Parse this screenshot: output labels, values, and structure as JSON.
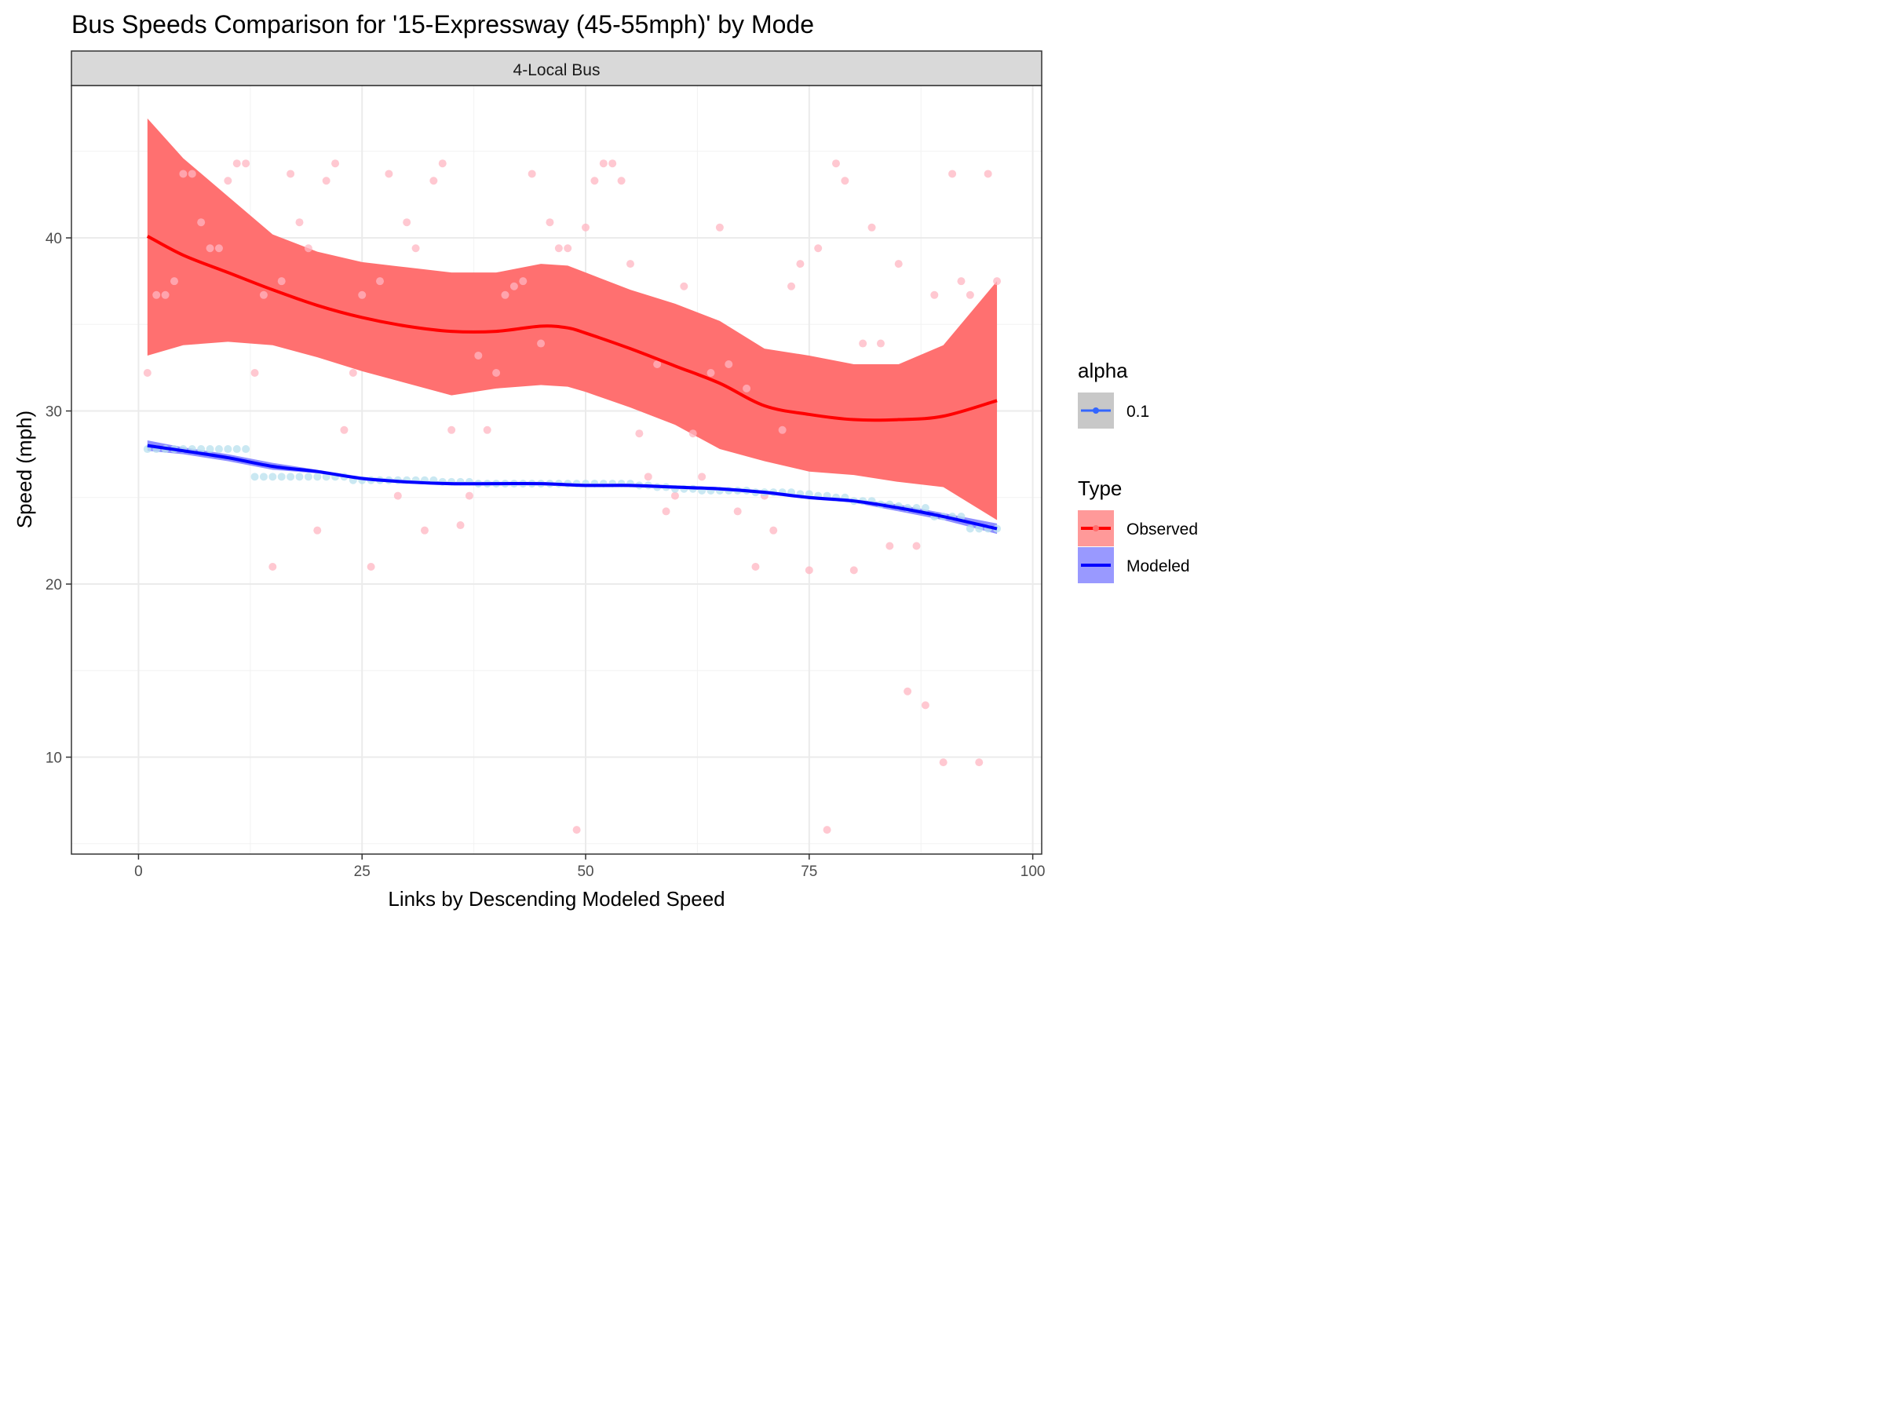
{
  "chart_data": {
    "type": "scatter",
    "title": "Bus Speeds Comparison for '15-Expressway (45-55mph)' by Mode",
    "facet_label": "4-Local Bus",
    "xlabel": "Links by Descending Modeled Speed",
    "ylabel": "Speed (mph)",
    "xlim": [
      -7.5,
      101
    ],
    "ylim": [
      4.4,
      48.8
    ],
    "x_ticks": [
      0,
      25,
      50,
      75,
      100
    ],
    "x_tick_labels": [
      "0",
      "25",
      "50",
      "75",
      "100"
    ],
    "y_ticks": [
      10,
      20,
      30,
      40
    ],
    "y_tick_labels": [
      "10",
      "20",
      "30",
      "40"
    ],
    "grid": true,
    "legend_position": "right",
    "legends": [
      {
        "title": "alpha",
        "items": [
          {
            "label": "0.1",
            "color": "#3366ff"
          }
        ]
      },
      {
        "title": "Type",
        "items": [
          {
            "label": "Observed",
            "color": "#ff0000",
            "fill": "#ff9999"
          },
          {
            "label": "Modeled",
            "color": "#0000ff",
            "fill": "#9999ff"
          }
        ]
      }
    ],
    "series": [
      {
        "name": "Observed",
        "point_color": "#ffb6c1",
        "line_color": "#ff0000",
        "band_color": "#ff7070",
        "points": [
          [
            1,
            32.2
          ],
          [
            2,
            36.7
          ],
          [
            3,
            36.7
          ],
          [
            4,
            37.5
          ],
          [
            5,
            43.7
          ],
          [
            6,
            43.7
          ],
          [
            7,
            40.9
          ],
          [
            8,
            39.4
          ],
          [
            9,
            39.4
          ],
          [
            10,
            43.3
          ],
          [
            11,
            44.3
          ],
          [
            12,
            44.3
          ],
          [
            13,
            32.2
          ],
          [
            14,
            36.7
          ],
          [
            15,
            21.0
          ],
          [
            16,
            37.5
          ],
          [
            17,
            43.7
          ],
          [
            18,
            40.9
          ],
          [
            19,
            39.4
          ],
          [
            20,
            23.1
          ],
          [
            21,
            43.3
          ],
          [
            22,
            44.3
          ],
          [
            23,
            28.9
          ],
          [
            24,
            32.2
          ],
          [
            25,
            36.7
          ],
          [
            26,
            21.0
          ],
          [
            27,
            37.5
          ],
          [
            28,
            43.7
          ],
          [
            29,
            25.1
          ],
          [
            30,
            40.9
          ],
          [
            31,
            39.4
          ],
          [
            32,
            23.1
          ],
          [
            33,
            43.3
          ],
          [
            34,
            44.3
          ],
          [
            35,
            28.9
          ],
          [
            36,
            23.4
          ],
          [
            37,
            25.1
          ],
          [
            38,
            33.2
          ],
          [
            39,
            28.9
          ],
          [
            40,
            32.2
          ],
          [
            41,
            36.7
          ],
          [
            42,
            37.2
          ],
          [
            43,
            37.5
          ],
          [
            44,
            43.7
          ],
          [
            45,
            33.9
          ],
          [
            46,
            40.9
          ],
          [
            47,
            39.4
          ],
          [
            48,
            39.4
          ],
          [
            49,
            5.8
          ],
          [
            50,
            40.6
          ],
          [
            51,
            43.3
          ],
          [
            52,
            44.3
          ],
          [
            53,
            44.3
          ],
          [
            54,
            43.3
          ],
          [
            55,
            38.5
          ],
          [
            56,
            28.7
          ],
          [
            57,
            26.2
          ],
          [
            58,
            32.7
          ],
          [
            59,
            24.2
          ],
          [
            60,
            25.1
          ],
          [
            61,
            37.2
          ],
          [
            62,
            28.7
          ],
          [
            63,
            26.2
          ],
          [
            64,
            32.2
          ],
          [
            65,
            40.6
          ],
          [
            66,
            32.7
          ],
          [
            67,
            24.2
          ],
          [
            68,
            31.3
          ],
          [
            69,
            21.0
          ],
          [
            70,
            25.1
          ],
          [
            71,
            23.1
          ],
          [
            72,
            28.9
          ],
          [
            73,
            37.2
          ],
          [
            74,
            38.5
          ],
          [
            75,
            20.8
          ],
          [
            76,
            39.4
          ],
          [
            77,
            5.8
          ],
          [
            78,
            44.3
          ],
          [
            79,
            43.3
          ],
          [
            80,
            20.8
          ],
          [
            81,
            33.9
          ],
          [
            82,
            40.6
          ],
          [
            83,
            33.9
          ],
          [
            84,
            22.2
          ],
          [
            85,
            38.5
          ],
          [
            86,
            13.8
          ],
          [
            87,
            22.2
          ],
          [
            88,
            13.0
          ],
          [
            89,
            36.7
          ],
          [
            90,
            9.7
          ],
          [
            91,
            43.7
          ],
          [
            92,
            37.5
          ],
          [
            93,
            36.7
          ],
          [
            94,
            9.7
          ],
          [
            95,
            43.7
          ],
          [
            96,
            37.5
          ]
        ],
        "smooth": [
          [
            1,
            40.1
          ],
          [
            5,
            39.0
          ],
          [
            10,
            38.0
          ],
          [
            15,
            37.0
          ],
          [
            20,
            36.1
          ],
          [
            25,
            35.4
          ],
          [
            30,
            34.9
          ],
          [
            35,
            34.6
          ],
          [
            40,
            34.6
          ],
          [
            45,
            34.9
          ],
          [
            48,
            34.8
          ],
          [
            50,
            34.5
          ],
          [
            55,
            33.6
          ],
          [
            60,
            32.6
          ],
          [
            65,
            31.6
          ],
          [
            70,
            30.3
          ],
          [
            75,
            29.8
          ],
          [
            80,
            29.5
          ],
          [
            85,
            29.5
          ],
          [
            90,
            29.7
          ],
          [
            96,
            30.6
          ]
        ],
        "band_upper": [
          [
            1,
            46.9
          ],
          [
            5,
            44.6
          ],
          [
            10,
            42.4
          ],
          [
            15,
            40.2
          ],
          [
            20,
            39.2
          ],
          [
            25,
            38.6
          ],
          [
            30,
            38.3
          ],
          [
            35,
            38.0
          ],
          [
            40,
            38.0
          ],
          [
            45,
            38.5
          ],
          [
            48,
            38.4
          ],
          [
            50,
            38.0
          ],
          [
            55,
            37.0
          ],
          [
            60,
            36.2
          ],
          [
            65,
            35.2
          ],
          [
            70,
            33.6
          ],
          [
            75,
            33.2
          ],
          [
            80,
            32.7
          ],
          [
            85,
            32.7
          ],
          [
            90,
            33.8
          ],
          [
            96,
            37.5
          ]
        ],
        "band_lower": [
          [
            1,
            33.2
          ],
          [
            5,
            33.8
          ],
          [
            10,
            34.0
          ],
          [
            15,
            33.8
          ],
          [
            20,
            33.1
          ],
          [
            25,
            32.3
          ],
          [
            30,
            31.6
          ],
          [
            35,
            30.9
          ],
          [
            40,
            31.3
          ],
          [
            45,
            31.5
          ],
          [
            48,
            31.4
          ],
          [
            50,
            31.1
          ],
          [
            55,
            30.2
          ],
          [
            60,
            29.2
          ],
          [
            65,
            27.8
          ],
          [
            70,
            27.1
          ],
          [
            75,
            26.5
          ],
          [
            80,
            26.3
          ],
          [
            85,
            25.9
          ],
          [
            90,
            25.6
          ],
          [
            96,
            23.7
          ]
        ]
      },
      {
        "name": "Modeled",
        "point_color": "#b8e0ee",
        "line_color": "#0000ff",
        "band_color": "#7b7bff",
        "points": [
          [
            1,
            27.8
          ],
          [
            2,
            27.8
          ],
          [
            3,
            27.8
          ],
          [
            4,
            27.8
          ],
          [
            5,
            27.8
          ],
          [
            6,
            27.8
          ],
          [
            7,
            27.8
          ],
          [
            8,
            27.8
          ],
          [
            9,
            27.8
          ],
          [
            10,
            27.8
          ],
          [
            11,
            27.8
          ],
          [
            12,
            27.8
          ],
          [
            13,
            26.2
          ],
          [
            14,
            26.2
          ],
          [
            15,
            26.2
          ],
          [
            16,
            26.2
          ],
          [
            17,
            26.2
          ],
          [
            18,
            26.2
          ],
          [
            19,
            26.2
          ],
          [
            20,
            26.2
          ],
          [
            21,
            26.2
          ],
          [
            22,
            26.2
          ],
          [
            23,
            26.2
          ],
          [
            24,
            26.0
          ],
          [
            25,
            26.0
          ],
          [
            26,
            26.0
          ],
          [
            27,
            26.0
          ],
          [
            28,
            26.0
          ],
          [
            29,
            26.0
          ],
          [
            30,
            26.0
          ],
          [
            31,
            26.0
          ],
          [
            32,
            26.0
          ],
          [
            33,
            26.0
          ],
          [
            34,
            25.9
          ],
          [
            35,
            25.9
          ],
          [
            36,
            25.9
          ],
          [
            37,
            25.9
          ],
          [
            38,
            25.8
          ],
          [
            39,
            25.8
          ],
          [
            40,
            25.8
          ],
          [
            41,
            25.8
          ],
          [
            42,
            25.8
          ],
          [
            43,
            25.8
          ],
          [
            44,
            25.8
          ],
          [
            45,
            25.8
          ],
          [
            46,
            25.8
          ],
          [
            47,
            25.8
          ],
          [
            48,
            25.8
          ],
          [
            49,
            25.8
          ],
          [
            50,
            25.8
          ],
          [
            51,
            25.8
          ],
          [
            52,
            25.8
          ],
          [
            53,
            25.8
          ],
          [
            54,
            25.8
          ],
          [
            55,
            25.8
          ],
          [
            56,
            25.7
          ],
          [
            57,
            25.7
          ],
          [
            58,
            25.6
          ],
          [
            59,
            25.6
          ],
          [
            60,
            25.5
          ],
          [
            61,
            25.5
          ],
          [
            62,
            25.5
          ],
          [
            63,
            25.4
          ],
          [
            64,
            25.4
          ],
          [
            65,
            25.4
          ],
          [
            66,
            25.4
          ],
          [
            67,
            25.4
          ],
          [
            68,
            25.4
          ],
          [
            69,
            25.3
          ],
          [
            70,
            25.3
          ],
          [
            71,
            25.3
          ],
          [
            72,
            25.3
          ],
          [
            73,
            25.3
          ],
          [
            74,
            25.2
          ],
          [
            75,
            25.2
          ],
          [
            76,
            25.1
          ],
          [
            77,
            25.1
          ],
          [
            78,
            25.0
          ],
          [
            79,
            25.0
          ],
          [
            80,
            24.8
          ],
          [
            81,
            24.8
          ],
          [
            82,
            24.8
          ],
          [
            83,
            24.6
          ],
          [
            84,
            24.6
          ],
          [
            85,
            24.5
          ],
          [
            86,
            24.4
          ],
          [
            87,
            24.4
          ],
          [
            88,
            24.4
          ],
          [
            89,
            23.9
          ],
          [
            90,
            23.9
          ],
          [
            91,
            23.9
          ],
          [
            92,
            23.9
          ],
          [
            93,
            23.2
          ],
          [
            94,
            23.2
          ],
          [
            95,
            23.2
          ],
          [
            96,
            23.2
          ]
        ],
        "smooth": [
          [
            1,
            28.0
          ],
          [
            5,
            27.7
          ],
          [
            10,
            27.3
          ],
          [
            15,
            26.8
          ],
          [
            20,
            26.5
          ],
          [
            25,
            26.1
          ],
          [
            30,
            25.9
          ],
          [
            35,
            25.8
          ],
          [
            40,
            25.8
          ],
          [
            45,
            25.8
          ],
          [
            50,
            25.7
          ],
          [
            55,
            25.7
          ],
          [
            60,
            25.6
          ],
          [
            65,
            25.5
          ],
          [
            70,
            25.3
          ],
          [
            75,
            25.0
          ],
          [
            80,
            24.8
          ],
          [
            85,
            24.4
          ],
          [
            90,
            23.9
          ],
          [
            96,
            23.2
          ]
        ],
        "band_upper": [
          [
            1,
            28.3
          ],
          [
            5,
            27.9
          ],
          [
            10,
            27.5
          ],
          [
            15,
            27.0
          ],
          [
            20,
            26.6
          ],
          [
            25,
            26.2
          ],
          [
            30,
            26.0
          ],
          [
            35,
            25.9
          ],
          [
            40,
            25.9
          ],
          [
            45,
            25.9
          ],
          [
            50,
            25.8
          ],
          [
            55,
            25.8
          ],
          [
            60,
            25.7
          ],
          [
            65,
            25.6
          ],
          [
            70,
            25.4
          ],
          [
            75,
            25.1
          ],
          [
            80,
            24.9
          ],
          [
            85,
            24.6
          ],
          [
            90,
            24.1
          ],
          [
            96,
            23.5
          ]
        ],
        "band_lower": [
          [
            1,
            27.7
          ],
          [
            5,
            27.5
          ],
          [
            10,
            27.1
          ],
          [
            15,
            26.6
          ],
          [
            20,
            26.4
          ],
          [
            25,
            26.0
          ],
          [
            30,
            25.8
          ],
          [
            35,
            25.7
          ],
          [
            40,
            25.7
          ],
          [
            45,
            25.7
          ],
          [
            50,
            25.6
          ],
          [
            55,
            25.6
          ],
          [
            60,
            25.5
          ],
          [
            65,
            25.4
          ],
          [
            70,
            25.2
          ],
          [
            75,
            24.9
          ],
          [
            80,
            24.7
          ],
          [
            85,
            24.2
          ],
          [
            90,
            23.7
          ],
          [
            96,
            22.9
          ]
        ]
      }
    ]
  }
}
